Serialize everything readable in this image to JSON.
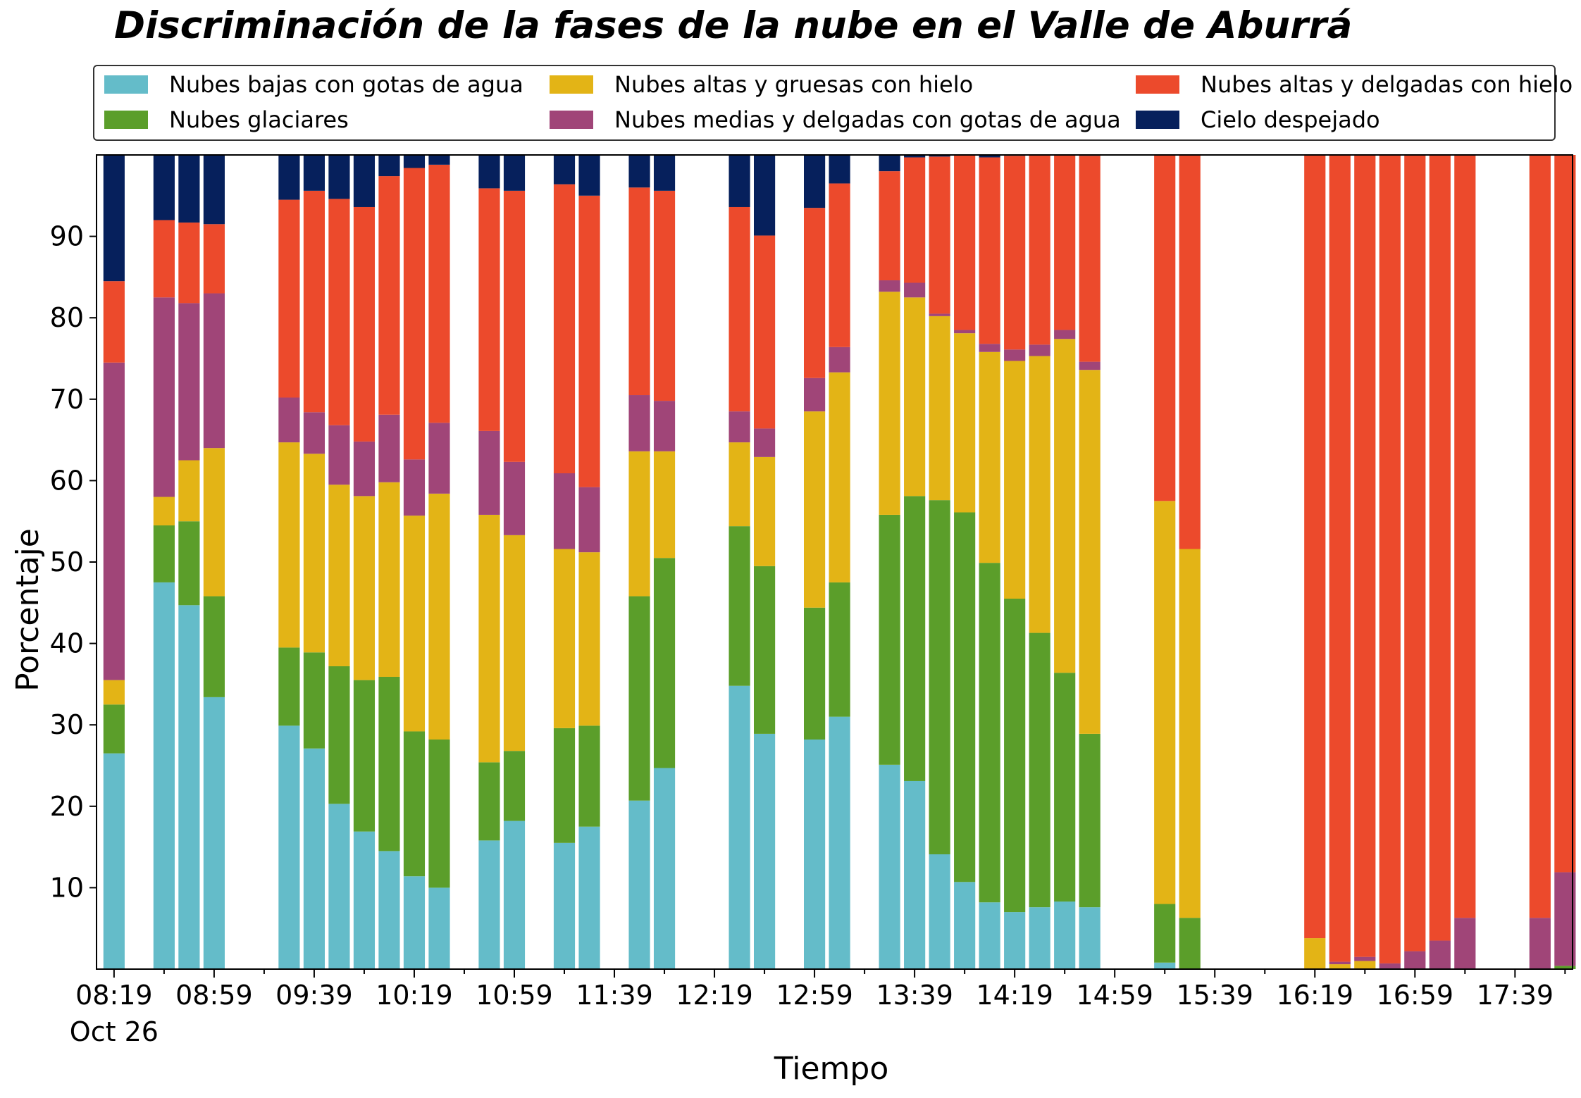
{
  "chart_data": {
    "type": "bar",
    "stacked": true,
    "title": "Discriminación de la fases de la nube en el Valle de Aburrá",
    "xlabel": "Tiempo",
    "ylabel": "Porcentaje",
    "ylim": [
      0,
      100
    ],
    "yticks": [
      10,
      20,
      30,
      40,
      50,
      60,
      70,
      80,
      90
    ],
    "xlim": [
      "08:12",
      "18:02"
    ],
    "x_tick_labels": [
      "08:19",
      "08:59",
      "09:39",
      "10:19",
      "10:59",
      "11:39",
      "12:19",
      "12:59",
      "13:39",
      "14:19",
      "14:59",
      "15:39",
      "16:19",
      "16:59",
      "17:39"
    ],
    "x_first_sublabel": "Oct 26",
    "x_date": "Oct 26",
    "grid": false,
    "legend_position": "top",
    "series": [
      {
        "name": "Nubes bajas con gotas de agua",
        "color": "#64bcc9"
      },
      {
        "name": "Nubes glaciares",
        "color": "#5b9e2a"
      },
      {
        "name": "Nubes altas y gruesas con hielo",
        "color": "#e3b416"
      },
      {
        "name": "Nubes medias y delgadas con gotas de agua",
        "color": "#a04578"
      },
      {
        "name": "Nubes altas y delgadas con hielo",
        "color": "#ec4a2c"
      },
      {
        "name": "Cielo despejado",
        "color": "#06205c"
      }
    ],
    "bars": [
      {
        "time": "08:19",
        "values": [
          26.5,
          6,
          3,
          39,
          10,
          15.5
        ]
      },
      {
        "time": "08:39",
        "values": [
          47.5,
          7,
          3.5,
          24.5,
          9.5,
          8
        ]
      },
      {
        "time": "08:49",
        "values": [
          44.7,
          10.3,
          7.5,
          19.3,
          9.9,
          8.3
        ]
      },
      {
        "time": "08:59",
        "values": [
          33.4,
          12.4,
          18.2,
          19,
          8.5,
          8.5
        ]
      },
      {
        "time": "09:29",
        "values": [
          29.9,
          9.6,
          25.2,
          5.5,
          24.3,
          5.5
        ]
      },
      {
        "time": "09:39",
        "values": [
          27.1,
          11.8,
          24.4,
          5.1,
          27.2,
          4.4
        ]
      },
      {
        "time": "09:49",
        "values": [
          20.3,
          16.9,
          22.3,
          7.3,
          27.8,
          5.4
        ]
      },
      {
        "time": "09:59",
        "values": [
          16.9,
          18.6,
          22.6,
          6.7,
          28.8,
          6.4
        ]
      },
      {
        "time": "10:09",
        "values": [
          14.5,
          21.4,
          23.9,
          8.3,
          29.3,
          2.6
        ]
      },
      {
        "time": "10:19",
        "values": [
          11.4,
          17.8,
          26.5,
          6.9,
          35.8,
          1.6
        ]
      },
      {
        "time": "10:29",
        "values": [
          10,
          18.2,
          30.2,
          8.7,
          31.7,
          1.2
        ]
      },
      {
        "time": "10:49",
        "values": [
          15.8,
          9.6,
          30.4,
          10.3,
          29.8,
          4.1
        ]
      },
      {
        "time": "10:59",
        "values": [
          18.2,
          8.6,
          26.5,
          9.0,
          33.3,
          4.4
        ]
      },
      {
        "time": "11:19",
        "values": [
          15.5,
          14.1,
          22.0,
          9.3,
          35.5,
          3.6
        ]
      },
      {
        "time": "11:29",
        "values": [
          17.5,
          12.4,
          21.3,
          8.0,
          35.8,
          5.0
        ]
      },
      {
        "time": "11:49",
        "values": [
          20.7,
          25.1,
          17.8,
          6.9,
          25.5,
          4.0
        ]
      },
      {
        "time": "11:59",
        "values": [
          24.7,
          25.8,
          13.1,
          6.2,
          25.8,
          4.4
        ]
      },
      {
        "time": "12:29",
        "values": [
          34.8,
          19.6,
          10.3,
          3.8,
          25.1,
          6.4
        ]
      },
      {
        "time": "12:39",
        "values": [
          28.9,
          20.6,
          13.4,
          3.5,
          23.7,
          9.9
        ]
      },
      {
        "time": "12:59",
        "values": [
          28.2,
          16.2,
          24.1,
          4.1,
          20.9,
          6.5
        ]
      },
      {
        "time": "13:09",
        "values": [
          31.0,
          16.5,
          25.8,
          3.1,
          20.1,
          3.5
        ]
      },
      {
        "time": "13:29",
        "values": [
          25.1,
          30.7,
          27.4,
          1.4,
          13.4,
          2.0
        ]
      },
      {
        "time": "13:39",
        "values": [
          23.1,
          35.0,
          24.4,
          1.8,
          15.4,
          0.8
        ]
      },
      {
        "time": "13:49",
        "values": [
          14.1,
          43.5,
          22.6,
          0.3,
          19.3,
          0.4
        ]
      },
      {
        "time": "13:59",
        "values": [
          10.7,
          45.4,
          22.0,
          0.4,
          21.6,
          0.2
        ]
      },
      {
        "time": "14:09",
        "values": [
          8.2,
          41.7,
          25.9,
          1.0,
          22.9,
          0.3
        ]
      },
      {
        "time": "14:19",
        "values": [
          7.0,
          38.5,
          29.2,
          1.4,
          23.8,
          0.3
        ]
      },
      {
        "time": "14:29",
        "values": [
          7.6,
          33.7,
          34.0,
          1.4,
          23.4,
          0.2
        ]
      },
      {
        "time": "14:39",
        "values": [
          8.3,
          28.1,
          41.0,
          1.1,
          21.5,
          0.2
        ]
      },
      {
        "time": "14:49",
        "values": [
          7.6,
          21.3,
          44.7,
          1.0,
          25.3,
          0.4
        ]
      },
      {
        "time": "15:19",
        "values": [
          0.8,
          7.2,
          49.5,
          0,
          42.5,
          0
        ]
      },
      {
        "time": "15:29",
        "values": [
          0,
          6.3,
          45.3,
          0,
          48.4,
          0
        ]
      },
      {
        "time": "16:19",
        "values": [
          0,
          0,
          3.8,
          0,
          96.2,
          0
        ]
      },
      {
        "time": "16:29",
        "values": [
          0,
          0,
          0.6,
          0.3,
          99.1,
          0
        ]
      },
      {
        "time": "16:39",
        "values": [
          0,
          0,
          1.0,
          0.5,
          98.5,
          0
        ]
      },
      {
        "time": "16:49",
        "values": [
          0,
          0,
          0,
          0.7,
          99.3,
          0
        ]
      },
      {
        "time": "16:59",
        "values": [
          0,
          0,
          0,
          2.2,
          97.8,
          0
        ]
      },
      {
        "time": "17:09",
        "values": [
          0,
          0,
          0,
          3.5,
          96.5,
          0
        ]
      },
      {
        "time": "17:19",
        "values": [
          0,
          0,
          0,
          6.3,
          93.7,
          0
        ]
      },
      {
        "time": "17:49",
        "values": [
          0,
          0,
          0,
          6.3,
          93.7,
          0
        ]
      },
      {
        "time": "17:59",
        "values": [
          0,
          0.4,
          0,
          11.5,
          88.1,
          0
        ]
      }
    ]
  }
}
